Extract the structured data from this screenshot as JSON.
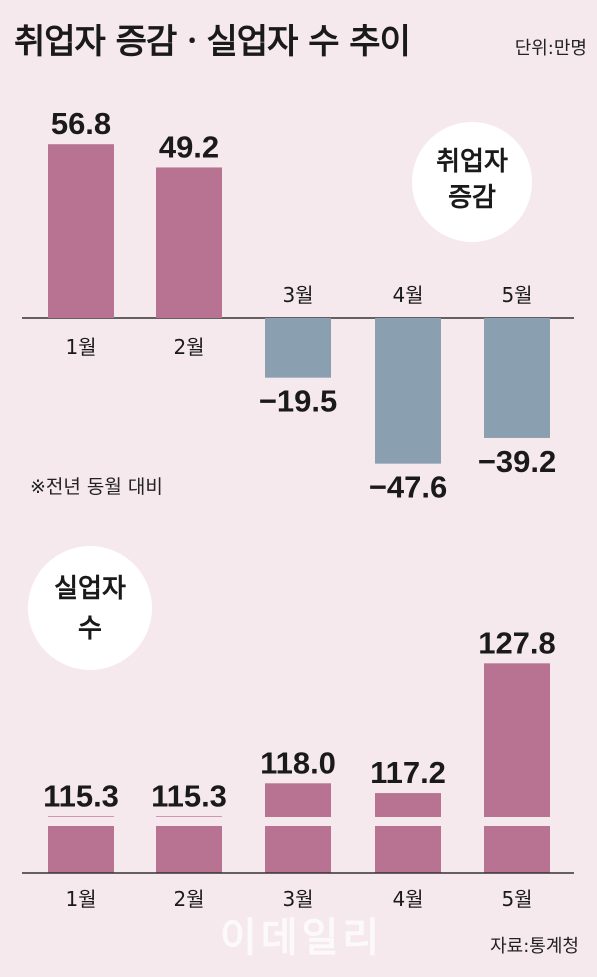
{
  "title": "취업자 증감ㆍ실업자 수 추이",
  "unit": "단위:만명",
  "note": "※전년 동월 대비",
  "source": "자료:통계청",
  "watermark": "이데일리",
  "colors": {
    "positive": "#b87392",
    "negative": "#8a9faf",
    "background": "#f6e9ee",
    "badge": "#ffffff"
  },
  "chart_data": [
    {
      "type": "bar",
      "badge": [
        "취업자",
        "증감"
      ],
      "categories": [
        "1월",
        "2월",
        "3월",
        "4월",
        "5월"
      ],
      "values": [
        56.8,
        49.2,
        -19.5,
        -47.6,
        -39.2
      ],
      "value_labels": [
        "56.8",
        "49.2",
        "−19.5",
        "−47.6",
        "−39.2"
      ]
    },
    {
      "type": "bar",
      "badge": [
        "실업자",
        "수"
      ],
      "categories": [
        "1월",
        "2월",
        "3월",
        "4월",
        "5월"
      ],
      "values": [
        115.3,
        115.3,
        118.0,
        117.2,
        127.8
      ],
      "value_labels": [
        "115.3",
        "115.3",
        "118.0",
        "117.2",
        "127.8"
      ],
      "axis_break": true
    }
  ]
}
